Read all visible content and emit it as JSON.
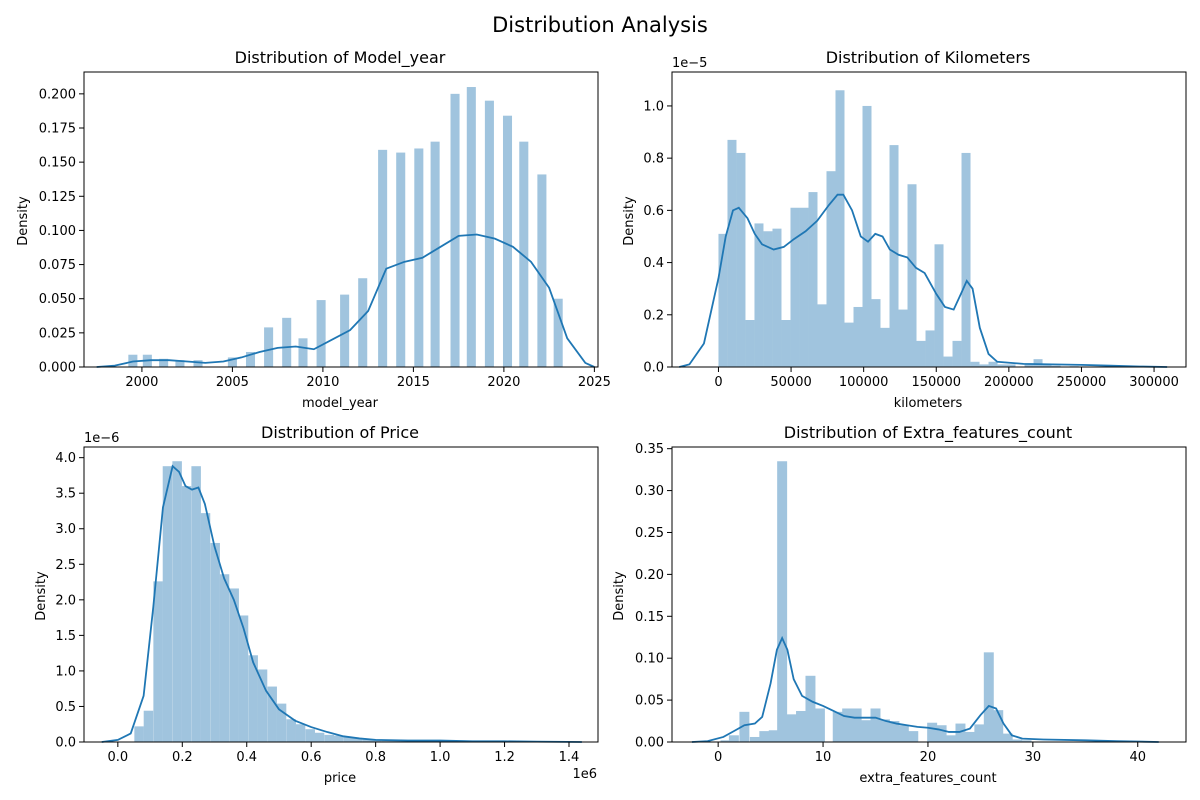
{
  "suptitle": "Distribution Analysis",
  "colors": {
    "bar": "#a0c4de",
    "kde": "#1f77b4",
    "axis": "#000000"
  },
  "chart_data": [
    {
      "type": "bar",
      "title": "Distribution of Model_year",
      "xlabel": "model_year",
      "ylabel": "Density",
      "offset_label": "",
      "xlim": [
        1996.8,
        2025.2
      ],
      "ylim": [
        0,
        0.216
      ],
      "xticks": [
        2000,
        2005,
        2010,
        2015,
        2020,
        2025
      ],
      "xtick_labels": [
        "2000",
        "2005",
        "2010",
        "2015",
        "2020",
        "2025"
      ],
      "yticks": [
        0,
        0.025,
        0.05,
        0.075,
        0.1,
        0.125,
        0.15,
        0.175,
        0.2
      ],
      "ytick_labels": [
        "0.000",
        "0.025",
        "0.050",
        "0.075",
        "0.100",
        "0.125",
        "0.150",
        "0.175",
        "0.200"
      ],
      "bar_width": 0.5,
      "bars": [
        [
          1999.5,
          0.009
        ],
        [
          2000.3,
          0.009
        ],
        [
          2001.2,
          0.006
        ],
        [
          2002.1,
          0.005
        ],
        [
          2003.1,
          0.005
        ],
        [
          2005.0,
          0.007
        ],
        [
          2006.0,
          0.011
        ],
        [
          2007.0,
          0.029
        ],
        [
          2008.0,
          0.036
        ],
        [
          2008.9,
          0.021
        ],
        [
          2009.9,
          0.049
        ],
        [
          2011.2,
          0.053
        ],
        [
          2012.2,
          0.065
        ],
        [
          2013.3,
          0.159
        ],
        [
          2014.3,
          0.157
        ],
        [
          2015.3,
          0.16
        ],
        [
          2016.2,
          0.165
        ],
        [
          2017.3,
          0.2
        ],
        [
          2018.2,
          0.205
        ],
        [
          2019.2,
          0.195
        ],
        [
          2020.2,
          0.184
        ],
        [
          2021.1,
          0.165
        ],
        [
          2022.1,
          0.141
        ],
        [
          2023.0,
          0.05
        ]
      ],
      "kde": [
        [
          1997.5,
          0.0
        ],
        [
          1998.5,
          0.001
        ],
        [
          1999.5,
          0.004
        ],
        [
          2000.5,
          0.005
        ],
        [
          2001.5,
          0.005
        ],
        [
          2002.5,
          0.004
        ],
        [
          2003.5,
          0.003
        ],
        [
          2004.5,
          0.004
        ],
        [
          2005.5,
          0.007
        ],
        [
          2006.5,
          0.011
        ],
        [
          2007.5,
          0.014
        ],
        [
          2008.5,
          0.015
        ],
        [
          2009.5,
          0.013
        ],
        [
          2010.5,
          0.02
        ],
        [
          2011.5,
          0.027
        ],
        [
          2012.5,
          0.041
        ],
        [
          2013.5,
          0.072
        ],
        [
          2014.5,
          0.077
        ],
        [
          2015.5,
          0.08
        ],
        [
          2016.5,
          0.088
        ],
        [
          2017.5,
          0.096
        ],
        [
          2018.5,
          0.097
        ],
        [
          2019.5,
          0.094
        ],
        [
          2020.5,
          0.088
        ],
        [
          2021.5,
          0.077
        ],
        [
          2022.5,
          0.058
        ],
        [
          2023.5,
          0.021
        ],
        [
          2024.5,
          0.003
        ],
        [
          2025.0,
          0.0
        ]
      ]
    },
    {
      "type": "bar",
      "title": "Distribution of Kilometers",
      "xlabel": "kilometers",
      "ylabel": "Density",
      "offset_label": "1e−5",
      "xlim": [
        -32000,
        322000
      ],
      "ylim": [
        0,
        1.13
      ],
      "xticks": [
        0,
        50000,
        100000,
        150000,
        200000,
        250000,
        300000
      ],
      "xtick_labels": [
        "0",
        "50000",
        "100000",
        "150000",
        "200000",
        "250000",
        "300000"
      ],
      "yticks": [
        0,
        0.2,
        0.4,
        0.6,
        0.8,
        1.0
      ],
      "ytick_labels": [
        "0.0",
        "0.2",
        "0.4",
        "0.6",
        "0.8",
        "1.0"
      ],
      "bar_width": 6200,
      "bars": [
        [
          3100,
          0.51
        ],
        [
          9300,
          0.87
        ],
        [
          15500,
          0.82
        ],
        [
          21700,
          0.18
        ],
        [
          27900,
          0.55
        ],
        [
          34100,
          0.52
        ],
        [
          40300,
          0.53
        ],
        [
          46500,
          0.18
        ],
        [
          52700,
          0.61
        ],
        [
          58900,
          0.61
        ],
        [
          65100,
          0.67
        ],
        [
          71300,
          0.24
        ],
        [
          77500,
          0.75
        ],
        [
          83700,
          1.06
        ],
        [
          89900,
          0.17
        ],
        [
          96100,
          0.23
        ],
        [
          102300,
          1.0
        ],
        [
          108500,
          0.26
        ],
        [
          114700,
          0.15
        ],
        [
          120900,
          0.85
        ],
        [
          127100,
          0.22
        ],
        [
          133300,
          0.7
        ],
        [
          139500,
          0.1
        ],
        [
          145700,
          0.14
        ],
        [
          151900,
          0.47
        ],
        [
          158100,
          0.04
        ],
        [
          164300,
          0.1
        ],
        [
          170500,
          0.82
        ],
        [
          176700,
          0.02
        ],
        [
          182900,
          0.01
        ],
        [
          189100,
          0.02
        ],
        [
          195300,
          0.01
        ],
        [
          201500,
          0.01
        ],
        [
          213900,
          0.01
        ],
        [
          220100,
          0.03
        ],
        [
          226300,
          0.01
        ],
        [
          232500,
          0.005
        ],
        [
          245000,
          0.003
        ],
        [
          265000,
          0.002
        ]
      ],
      "kde": [
        [
          -27000,
          0.0
        ],
        [
          -20000,
          0.01
        ],
        [
          -10000,
          0.09
        ],
        [
          0,
          0.34
        ],
        [
          5000,
          0.5
        ],
        [
          10000,
          0.6
        ],
        [
          14000,
          0.61
        ],
        [
          20000,
          0.57
        ],
        [
          25000,
          0.51
        ],
        [
          30000,
          0.47
        ],
        [
          38000,
          0.45
        ],
        [
          45000,
          0.46
        ],
        [
          52000,
          0.49
        ],
        [
          60000,
          0.52
        ],
        [
          68000,
          0.56
        ],
        [
          76000,
          0.62
        ],
        [
          82000,
          0.66
        ],
        [
          86000,
          0.66
        ],
        [
          92000,
          0.6
        ],
        [
          98000,
          0.5
        ],
        [
          103000,
          0.48
        ],
        [
          108000,
          0.51
        ],
        [
          113000,
          0.5
        ],
        [
          118000,
          0.45
        ],
        [
          124000,
          0.43
        ],
        [
          130000,
          0.42
        ],
        [
          136000,
          0.38
        ],
        [
          142000,
          0.36
        ],
        [
          150000,
          0.28
        ],
        [
          156000,
          0.23
        ],
        [
          162000,
          0.22
        ],
        [
          167000,
          0.28
        ],
        [
          171000,
          0.33
        ],
        [
          175000,
          0.3
        ],
        [
          180000,
          0.15
        ],
        [
          186000,
          0.05
        ],
        [
          192000,
          0.02
        ],
        [
          210000,
          0.012
        ],
        [
          230000,
          0.01
        ],
        [
          250000,
          0.008
        ],
        [
          270000,
          0.005
        ],
        [
          290000,
          0.002
        ],
        [
          309000,
          0.0
        ]
      ]
    },
    {
      "type": "bar",
      "title": "Distribution of Price",
      "xlabel": "price",
      "ylabel": "Density",
      "offset_label": "1e−6",
      "x_offset_label": "1e6",
      "xlim": [
        -0.105,
        1.49
      ],
      "ylim": [
        0,
        4.15
      ],
      "xticks": [
        0,
        0.2,
        0.4,
        0.6,
        0.8,
        1.0,
        1.2,
        1.4
      ],
      "xtick_labels": [
        "0.0",
        "0.2",
        "0.4",
        "0.6",
        "0.8",
        "1.0",
        "1.2",
        "1.4"
      ],
      "yticks": [
        0,
        0.5,
        1.0,
        1.5,
        2.0,
        2.5,
        3.0,
        3.5,
        4.0
      ],
      "ytick_labels": [
        "0.0",
        "0.5",
        "1.0",
        "1.5",
        "2.0",
        "2.5",
        "3.0",
        "3.5",
        "4.0"
      ],
      "bar_width": 0.0295,
      "bars": [
        [
          0.066,
          0.22
        ],
        [
          0.095,
          0.44
        ],
        [
          0.125,
          2.26
        ],
        [
          0.154,
          3.88
        ],
        [
          0.184,
          3.95
        ],
        [
          0.213,
          3.6
        ],
        [
          0.243,
          3.88
        ],
        [
          0.272,
          3.22
        ],
        [
          0.302,
          2.8
        ],
        [
          0.331,
          2.36
        ],
        [
          0.361,
          2.16
        ],
        [
          0.39,
          1.78
        ],
        [
          0.42,
          1.22
        ],
        [
          0.449,
          1.02
        ],
        [
          0.479,
          0.78
        ],
        [
          0.508,
          0.54
        ],
        [
          0.538,
          0.32
        ],
        [
          0.567,
          0.25
        ],
        [
          0.597,
          0.18
        ],
        [
          0.626,
          0.13
        ],
        [
          0.656,
          0.1
        ],
        [
          0.685,
          0.09
        ],
        [
          0.715,
          0.07
        ],
        [
          0.744,
          0.05
        ],
        [
          0.774,
          0.04
        ],
        [
          0.803,
          0.03
        ],
        [
          0.833,
          0.02
        ],
        [
          0.862,
          0.02
        ],
        [
          0.892,
          0.02
        ],
        [
          0.921,
          0.02
        ],
        [
          0.951,
          0.02
        ],
        [
          0.98,
          0.01
        ],
        [
          1.01,
          0.01
        ],
        [
          1.039,
          0.01
        ],
        [
          1.069,
          0.01
        ],
        [
          1.098,
          0.01
        ],
        [
          1.128,
          0.01
        ],
        [
          1.157,
          0.01
        ],
        [
          1.187,
          0.01
        ],
        [
          1.216,
          0.01
        ],
        [
          1.246,
          0.005
        ],
        [
          1.275,
          0.005
        ],
        [
          1.305,
          0.005
        ],
        [
          1.334,
          0.005
        ],
        [
          1.364,
          0.005
        ],
        [
          1.393,
          0.005
        ],
        [
          1.423,
          0.005
        ]
      ],
      "kde": [
        [
          -0.05,
          0.0
        ],
        [
          0.0,
          0.03
        ],
        [
          0.04,
          0.12
        ],
        [
          0.08,
          0.65
        ],
        [
          0.11,
          1.9
        ],
        [
          0.14,
          3.3
        ],
        [
          0.17,
          3.88
        ],
        [
          0.19,
          3.8
        ],
        [
          0.21,
          3.6
        ],
        [
          0.23,
          3.55
        ],
        [
          0.25,
          3.58
        ],
        [
          0.27,
          3.35
        ],
        [
          0.3,
          2.75
        ],
        [
          0.33,
          2.3
        ],
        [
          0.36,
          2.0
        ],
        [
          0.39,
          1.6
        ],
        [
          0.42,
          1.12
        ],
        [
          0.46,
          0.72
        ],
        [
          0.5,
          0.46
        ],
        [
          0.55,
          0.3
        ],
        [
          0.6,
          0.21
        ],
        [
          0.65,
          0.14
        ],
        [
          0.7,
          0.08
        ],
        [
          0.75,
          0.05
        ],
        [
          0.8,
          0.03
        ],
        [
          0.9,
          0.02
        ],
        [
          1.0,
          0.02
        ],
        [
          1.1,
          0.01
        ],
        [
          1.2,
          0.01
        ],
        [
          1.3,
          0.005
        ],
        [
          1.44,
          0.0
        ]
      ]
    },
    {
      "type": "bar",
      "title": "Distribution of Extra_features_count",
      "xlabel": "extra_features_count",
      "ylabel": "Density",
      "offset_label": "",
      "xlim": [
        -4.4,
        44.6
      ],
      "ylim": [
        0,
        0.352
      ],
      "xticks": [
        0,
        10,
        20,
        30,
        40
      ],
      "xtick_labels": [
        "0",
        "10",
        "20",
        "30",
        "40"
      ],
      "yticks": [
        0,
        0.05,
        0.1,
        0.15,
        0.2,
        0.25,
        0.3,
        0.35
      ],
      "ytick_labels": [
        "0.00",
        "0.05",
        "0.10",
        "0.15",
        "0.20",
        "0.25",
        "0.30",
        "0.35"
      ],
      "bar_width": 0.95,
      "bars": [
        [
          0.7,
          0.002
        ],
        [
          1.5,
          0.008
        ],
        [
          2.5,
          0.036
        ],
        [
          3.5,
          0.006
        ],
        [
          4.4,
          0.013
        ],
        [
          5.3,
          0.014
        ],
        [
          6.1,
          0.335
        ],
        [
          7.0,
          0.033
        ],
        [
          7.9,
          0.037
        ],
        [
          8.8,
          0.079
        ],
        [
          9.7,
          0.04
        ],
        [
          11.4,
          0.036
        ],
        [
          12.3,
          0.04
        ],
        [
          13.2,
          0.04
        ],
        [
          14.1,
          0.026
        ],
        [
          15.0,
          0.04
        ],
        [
          15.9,
          0.027
        ],
        [
          16.8,
          0.025
        ],
        [
          17.7,
          0.02
        ],
        [
          18.6,
          0.013
        ],
        [
          20.4,
          0.023
        ],
        [
          21.3,
          0.02
        ],
        [
          22.2,
          0.008
        ],
        [
          23.1,
          0.022
        ],
        [
          24.0,
          0.012
        ],
        [
          24.9,
          0.021
        ],
        [
          25.8,
          0.107
        ],
        [
          26.7,
          0.038
        ],
        [
          27.6,
          0.01
        ],
        [
          28.5,
          0.003
        ],
        [
          29.4,
          0.002
        ]
      ],
      "kde": [
        [
          -2.5,
          0.0
        ],
        [
          -1.0,
          0.001
        ],
        [
          0.5,
          0.006
        ],
        [
          1.5,
          0.013
        ],
        [
          2.5,
          0.02
        ],
        [
          3.5,
          0.022
        ],
        [
          4.2,
          0.03
        ],
        [
          5.0,
          0.07
        ],
        [
          5.6,
          0.11
        ],
        [
          6.1,
          0.124
        ],
        [
          6.6,
          0.11
        ],
        [
          7.2,
          0.075
        ],
        [
          8.0,
          0.055
        ],
        [
          9.0,
          0.048
        ],
        [
          10.0,
          0.043
        ],
        [
          11.0,
          0.037
        ],
        [
          12.0,
          0.031
        ],
        [
          13.0,
          0.029
        ],
        [
          14.0,
          0.029
        ],
        [
          15.0,
          0.029
        ],
        [
          16.0,
          0.025
        ],
        [
          17.0,
          0.022
        ],
        [
          18.0,
          0.02
        ],
        [
          19.0,
          0.018
        ],
        [
          20.0,
          0.017
        ],
        [
          21.0,
          0.015
        ],
        [
          22.0,
          0.012
        ],
        [
          23.0,
          0.012
        ],
        [
          24.0,
          0.016
        ],
        [
          25.0,
          0.032
        ],
        [
          25.8,
          0.043
        ],
        [
          26.5,
          0.04
        ],
        [
          27.2,
          0.022
        ],
        [
          28.0,
          0.008
        ],
        [
          29.0,
          0.004
        ],
        [
          31.0,
          0.003
        ],
        [
          35.0,
          0.002
        ],
        [
          38.0,
          0.001
        ],
        [
          42.0,
          0.0
        ]
      ]
    }
  ]
}
